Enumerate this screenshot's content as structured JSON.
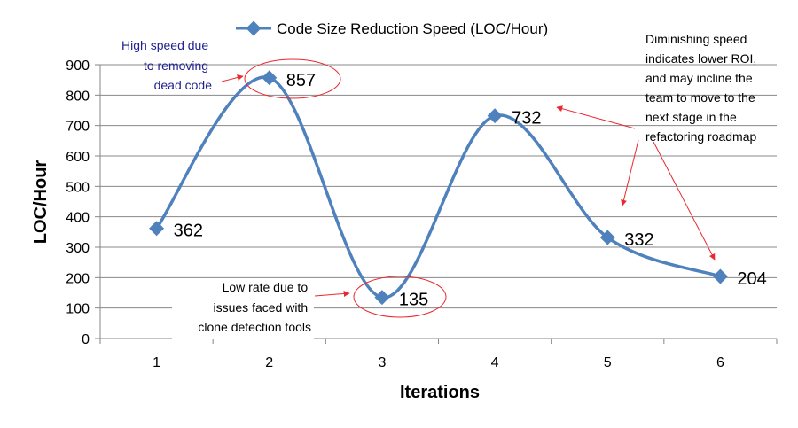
{
  "chart_data": {
    "type": "line",
    "title": "",
    "xlabel": "Iterations",
    "ylabel": "LOC/Hour",
    "categories": [
      "1",
      "2",
      "3",
      "4",
      "5",
      "6"
    ],
    "series": [
      {
        "name": "Code Size Reduction Speed (LOC/Hour)",
        "values": [
          362,
          857,
          135,
          732,
          332,
          204
        ]
      }
    ],
    "data_labels": [
      "362",
      "857",
      "135",
      "732",
      "332",
      "204"
    ],
    "ylim": [
      0,
      900
    ],
    "yticks": [
      "0",
      "100",
      "200",
      "300",
      "400",
      "500",
      "600",
      "700",
      "800",
      "900"
    ],
    "grid": "horizontal",
    "legend_position": "top",
    "series_color": "#4f81bd",
    "annotations": {
      "high_speed": [
        "High speed due",
        "to removing",
        "dead code"
      ],
      "low_rate": [
        "Low rate due to",
        "issues faced with",
        "clone detection tools"
      ],
      "diminishing": [
        "Diminishing speed",
        "indicates lower ROI,",
        "and may incline the",
        "team to move to the",
        "next stage in the",
        "refactoring roadmap"
      ]
    }
  }
}
